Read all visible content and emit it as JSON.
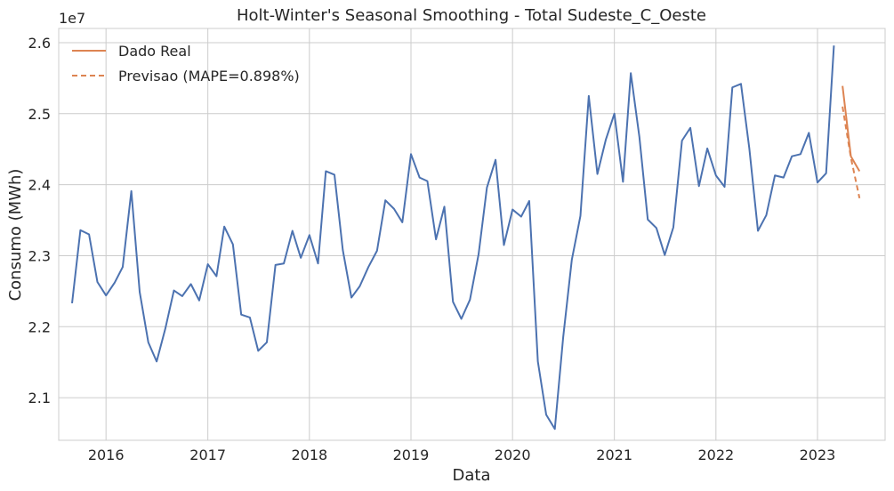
{
  "chart_data": {
    "type": "line",
    "title": "Holt-Winter's Seasonal Smoothing - Total Sudeste_C_Oeste",
    "xlabel": "Data",
    "ylabel": "Consumo (MWh)",
    "y_offset_label": "1e7",
    "y_scale": 10000000,
    "x_ticks": [
      "2016",
      "2017",
      "2018",
      "2019",
      "2020",
      "2021",
      "2022",
      "2023"
    ],
    "y_ticks": [
      "2.1",
      "2.2",
      "2.3",
      "2.4",
      "2.5",
      "2.6"
    ],
    "xlim": [
      "2015-07-15",
      "2023-09-01"
    ],
    "ylim": [
      2.04,
      2.62
    ],
    "grid": true,
    "legend_position": "top-left",
    "colors": {
      "history": "#4c72b0",
      "real": "#dd8452",
      "forecast": "#dd8452"
    },
    "series": [
      {
        "key": "history",
        "x": [
          "2015-09-01",
          "2015-10-01",
          "2015-11-01",
          "2015-12-01",
          "2016-01-01",
          "2016-02-01",
          "2016-03-01",
          "2016-04-01",
          "2016-05-01",
          "2016-06-01",
          "2016-07-01",
          "2016-08-01",
          "2016-09-01",
          "2016-10-01",
          "2016-11-01",
          "2016-12-01",
          "2017-01-01",
          "2017-02-01",
          "2017-03-01",
          "2017-04-01",
          "2017-05-01",
          "2017-06-01",
          "2017-07-01",
          "2017-08-01",
          "2017-09-01",
          "2017-10-01",
          "2017-11-01",
          "2017-12-01",
          "2018-01-01",
          "2018-02-01",
          "2018-03-01",
          "2018-04-01",
          "2018-05-01",
          "2018-06-01",
          "2018-07-01",
          "2018-08-01",
          "2018-09-01",
          "2018-10-01",
          "2018-11-01",
          "2018-12-01",
          "2019-01-01",
          "2019-02-01",
          "2019-03-01",
          "2019-04-01",
          "2019-05-01",
          "2019-06-01",
          "2019-07-01",
          "2019-08-01",
          "2019-09-01",
          "2019-10-01",
          "2019-11-01",
          "2019-12-01",
          "2020-01-01",
          "2020-02-01",
          "2020-03-01",
          "2020-04-01",
          "2020-05-01",
          "2020-06-01",
          "2020-07-01",
          "2020-08-01",
          "2020-09-01",
          "2020-10-01",
          "2020-11-01",
          "2020-12-01",
          "2021-01-01",
          "2021-02-01",
          "2021-03-01",
          "2021-04-01",
          "2021-05-01",
          "2021-06-01",
          "2021-07-01",
          "2021-08-01",
          "2021-09-01",
          "2021-10-01",
          "2021-11-01",
          "2021-12-01",
          "2022-01-01",
          "2022-02-01",
          "2022-03-01",
          "2022-04-01",
          "2022-05-01",
          "2022-06-01",
          "2022-07-01",
          "2022-08-01",
          "2022-09-01",
          "2022-10-01",
          "2022-11-01",
          "2022-12-01",
          "2023-01-01",
          "2023-02-01",
          "2023-03-01"
        ],
        "values": [
          2.233,
          2.336,
          2.33,
          2.263,
          2.244,
          2.262,
          2.284,
          2.391,
          2.249,
          2.178,
          2.151,
          2.197,
          2.251,
          2.243,
          2.26,
          2.237,
          2.288,
          2.271,
          2.341,
          2.316,
          2.217,
          2.213,
          2.166,
          2.178,
          2.287,
          2.289,
          2.335,
          2.297,
          2.329,
          2.289,
          2.419,
          2.414,
          2.308,
          2.241,
          2.257,
          2.284,
          2.307,
          2.378,
          2.366,
          2.347,
          2.443,
          2.41,
          2.405,
          2.323,
          2.369,
          2.235,
          2.211,
          2.238,
          2.302,
          2.396,
          2.435,
          2.315,
          2.365,
          2.355,
          2.377,
          2.151,
          2.076,
          2.056,
          2.185,
          2.294,
          2.356,
          2.525,
          2.415,
          2.463,
          2.5,
          2.404,
          2.557,
          2.467,
          2.351,
          2.339,
          2.301,
          2.34,
          2.462,
          2.48,
          2.398,
          2.451,
          2.413,
          2.397,
          2.537,
          2.542,
          2.451,
          2.335,
          2.357,
          2.413,
          2.41,
          2.44,
          2.443,
          2.473,
          2.403,
          2.416,
          2.596
        ]
      },
      {
        "key": "real",
        "name": "Dado Real",
        "x": [
          "2023-04-01",
          "2023-05-01",
          "2023-06-01"
        ],
        "values": [
          2.539,
          2.44,
          2.419
        ]
      },
      {
        "key": "forecast",
        "name": "Previsao (MAPE=0.898%)",
        "x": [
          "2023-04-01",
          "2023-05-01",
          "2023-06-01"
        ],
        "values": [
          2.51,
          2.438,
          2.381
        ]
      }
    ]
  }
}
